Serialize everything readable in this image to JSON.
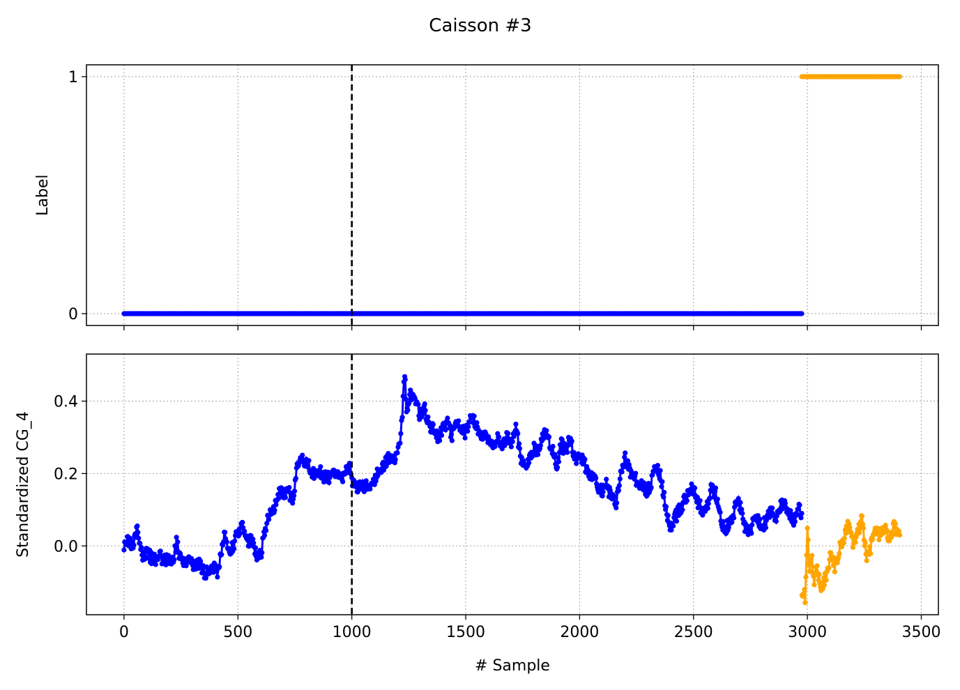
{
  "chart_data": {
    "type": "line",
    "title": "Caisson #3",
    "xlabel": "# Sample",
    "xlim": [
      -165,
      3575
    ],
    "xticks": [
      0,
      500,
      1000,
      1500,
      2000,
      2500,
      3000,
      3500
    ],
    "xtick_labels": [
      "0",
      "500",
      "1000",
      "1500",
      "2000",
      "2500",
      "3000",
      "3500"
    ],
    "grid": true,
    "vline": {
      "x": 1000,
      "style": "dashed",
      "color": "#000000"
    },
    "colors": {
      "normal": "#0000ff",
      "anomaly": "#ffa500"
    },
    "panels": [
      {
        "ylabel": "Label",
        "ylim": [
          -0.05,
          1.05
        ],
        "yticks": [
          0,
          1
        ],
        "ytick_labels": [
          "0",
          "1"
        ],
        "series": [
          {
            "x": [
              0,
              2975
            ],
            "y": [
              0,
              0
            ],
            "color": "#0000ff"
          },
          {
            "x": [
              2976,
              3405
            ],
            "y": [
              1,
              1
            ],
            "color": "#ffa500"
          }
        ]
      },
      {
        "ylabel": "Standardized CG_4",
        "ylim": [
          -0.19,
          0.53
        ],
        "yticks": [
          0.0,
          0.2,
          0.4
        ],
        "ytick_labels": [
          "0.0",
          "0.2",
          "0.4"
        ],
        "series": [
          {
            "color": "#0000ff",
            "x": [
              0,
              20,
              40,
              55,
              70,
              85,
              100,
              130,
              160,
              190,
              220,
              230,
              250,
              270,
              290,
              310,
              330,
              350,
              375,
              390,
              410,
              425,
              440,
              460,
              480,
              500,
              520,
              540,
              560,
              580,
              600,
              620,
              630,
              650,
              670,
              690,
              700,
              720,
              740,
              760,
              780,
              800,
              820,
              840,
              860,
              880,
              900,
              930,
              960,
              990,
              1000,
              1020,
              1040,
              1060,
              1080,
              1100,
              1120,
              1140,
              1160,
              1180,
              1200,
              1215,
              1225,
              1232,
              1240,
              1260,
              1280,
              1300,
              1320,
              1340,
              1360,
              1380,
              1400,
              1420,
              1440,
              1460,
              1480,
              1500,
              1520,
              1540,
              1560,
              1580,
              1600,
              1620,
              1640,
              1660,
              1680,
              1700,
              1720,
              1740,
              1760,
              1780,
              1800,
              1820,
              1840,
              1860,
              1880,
              1900,
              1920,
              1940,
              1960,
              1980,
              2000,
              2020,
              2040,
              2060,
              2080,
              2100,
              2120,
              2140,
              2160,
              2180,
              2200,
              2220,
              2240,
              2260,
              2280,
              2300,
              2320,
              2340,
              2360,
              2380,
              2400,
              2420,
              2440,
              2460,
              2480,
              2500,
              2520,
              2540,
              2560,
              2580,
              2600,
              2620,
              2640,
              2660,
              2680,
              2700,
              2720,
              2740,
              2760,
              2780,
              2800,
              2820,
              2840,
              2860,
              2880,
              2900,
              2920,
              2940,
              2960,
              2975
            ],
            "y": [
              0.0,
              0.02,
              -0.01,
              0.05,
              0.0,
              -0.03,
              -0.02,
              -0.04,
              -0.03,
              -0.04,
              -0.03,
              0.01,
              -0.04,
              -0.05,
              -0.04,
              -0.06,
              -0.05,
              -0.07,
              -0.08,
              -0.06,
              -0.07,
              -0.03,
              0.03,
              -0.02,
              0.0,
              0.04,
              0.05,
              0.02,
              0.01,
              -0.02,
              -0.03,
              0.05,
              0.07,
              0.1,
              0.12,
              0.16,
              0.14,
              0.15,
              0.13,
              0.22,
              0.24,
              0.23,
              0.21,
              0.2,
              0.21,
              0.19,
              0.19,
              0.2,
              0.19,
              0.22,
              0.18,
              0.16,
              0.16,
              0.17,
              0.15,
              0.18,
              0.21,
              0.22,
              0.24,
              0.24,
              0.25,
              0.3,
              0.4,
              0.48,
              0.38,
              0.42,
              0.4,
              0.36,
              0.38,
              0.33,
              0.32,
              0.3,
              0.32,
              0.34,
              0.3,
              0.35,
              0.33,
              0.31,
              0.36,
              0.34,
              0.31,
              0.3,
              0.29,
              0.28,
              0.3,
              0.27,
              0.31,
              0.28,
              0.33,
              0.25,
              0.21,
              0.24,
              0.27,
              0.26,
              0.31,
              0.3,
              0.27,
              0.22,
              0.28,
              0.26,
              0.3,
              0.24,
              0.25,
              0.23,
              0.2,
              0.19,
              0.16,
              0.15,
              0.17,
              0.13,
              0.12,
              0.2,
              0.24,
              0.21,
              0.19,
              0.17,
              0.16,
              0.15,
              0.19,
              0.22,
              0.18,
              0.1,
              0.05,
              0.08,
              0.1,
              0.13,
              0.15,
              0.16,
              0.12,
              0.1,
              0.11,
              0.16,
              0.14,
              0.07,
              0.05,
              0.06,
              0.1,
              0.12,
              0.06,
              0.03,
              0.06,
              0.08,
              0.05,
              0.07,
              0.1,
              0.08,
              0.11,
              0.12,
              0.09,
              0.07,
              0.1,
              0.09
            ]
          },
          {
            "color": "#ffa500",
            "x": [
              2976,
              2990,
              3000,
              3010,
              3020,
              3030,
              3040,
              3060,
              3080,
              3100,
              3120,
              3140,
              3160,
              3180,
              3200,
              3220,
              3240,
              3260,
              3280,
              3300,
              3320,
              3340,
              3360,
              3380,
              3405
            ],
            "y": [
              -0.12,
              -0.14,
              0.04,
              -0.08,
              -0.04,
              -0.1,
              -0.06,
              -0.11,
              -0.09,
              -0.03,
              -0.06,
              -0.01,
              0.02,
              0.06,
              0.0,
              0.03,
              0.08,
              -0.03,
              0.0,
              0.04,
              0.03,
              0.06,
              0.01,
              0.05,
              0.03
            ]
          }
        ]
      }
    ]
  }
}
